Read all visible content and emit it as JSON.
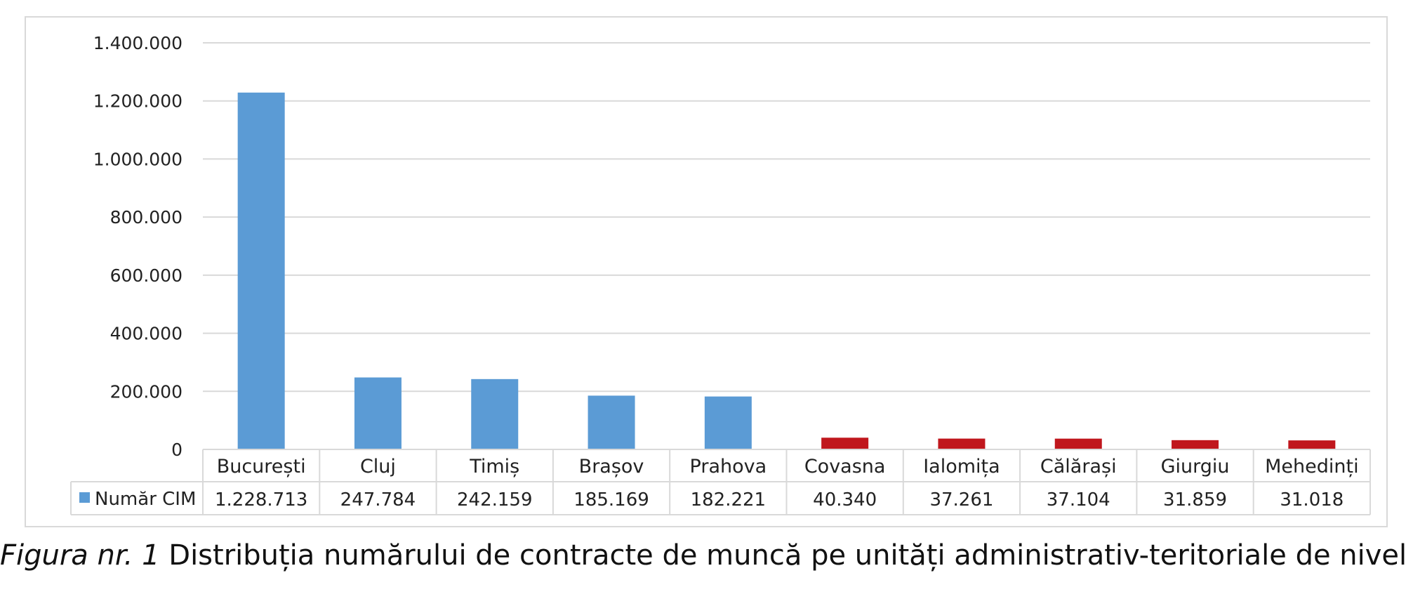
{
  "chart_data": {
    "type": "bar",
    "categories": [
      "București",
      "Cluj",
      "Timiș",
      "Brașov",
      "Prahova",
      "Covasna",
      "Ialomița",
      "Călărași",
      "Giurgiu",
      "Mehedinți"
    ],
    "series": [
      {
        "name": "Număr CIM",
        "values": [
          1228713,
          247784,
          242159,
          185169,
          182221,
          40340,
          37261,
          37104,
          31859,
          31018
        ],
        "value_labels": [
          "1.228.713",
          "247.784",
          "242.159",
          "185.169",
          "182.221",
          "40.340",
          "37.261",
          "37.104",
          "31.859",
          "31.018"
        ]
      }
    ],
    "bar_colors": [
      "#5b9bd5",
      "#5b9bd5",
      "#5b9bd5",
      "#5b9bd5",
      "#5b9bd5",
      "#c0171d",
      "#c0171d",
      "#c0171d",
      "#c0171d",
      "#c0171d"
    ],
    "legend_marker_color": "#5b9bd5",
    "ylim": [
      0,
      1400000
    ],
    "yticks": [
      0,
      200000,
      400000,
      600000,
      800000,
      1000000,
      1200000,
      1400000
    ],
    "ytick_labels": [
      "0",
      "200.000",
      "400.000",
      "600.000",
      "800.000",
      "1.000.000",
      "1.200.000",
      "1.400.000"
    ],
    "grid": true,
    "legend": "data-table",
    "gridline_color": "#d9d9d9"
  },
  "caption": {
    "label": "Figura nr. 1",
    "text": " Distribuția numărului de contracte de muncă pe unități administrativ-teritoriale de nivel I"
  }
}
